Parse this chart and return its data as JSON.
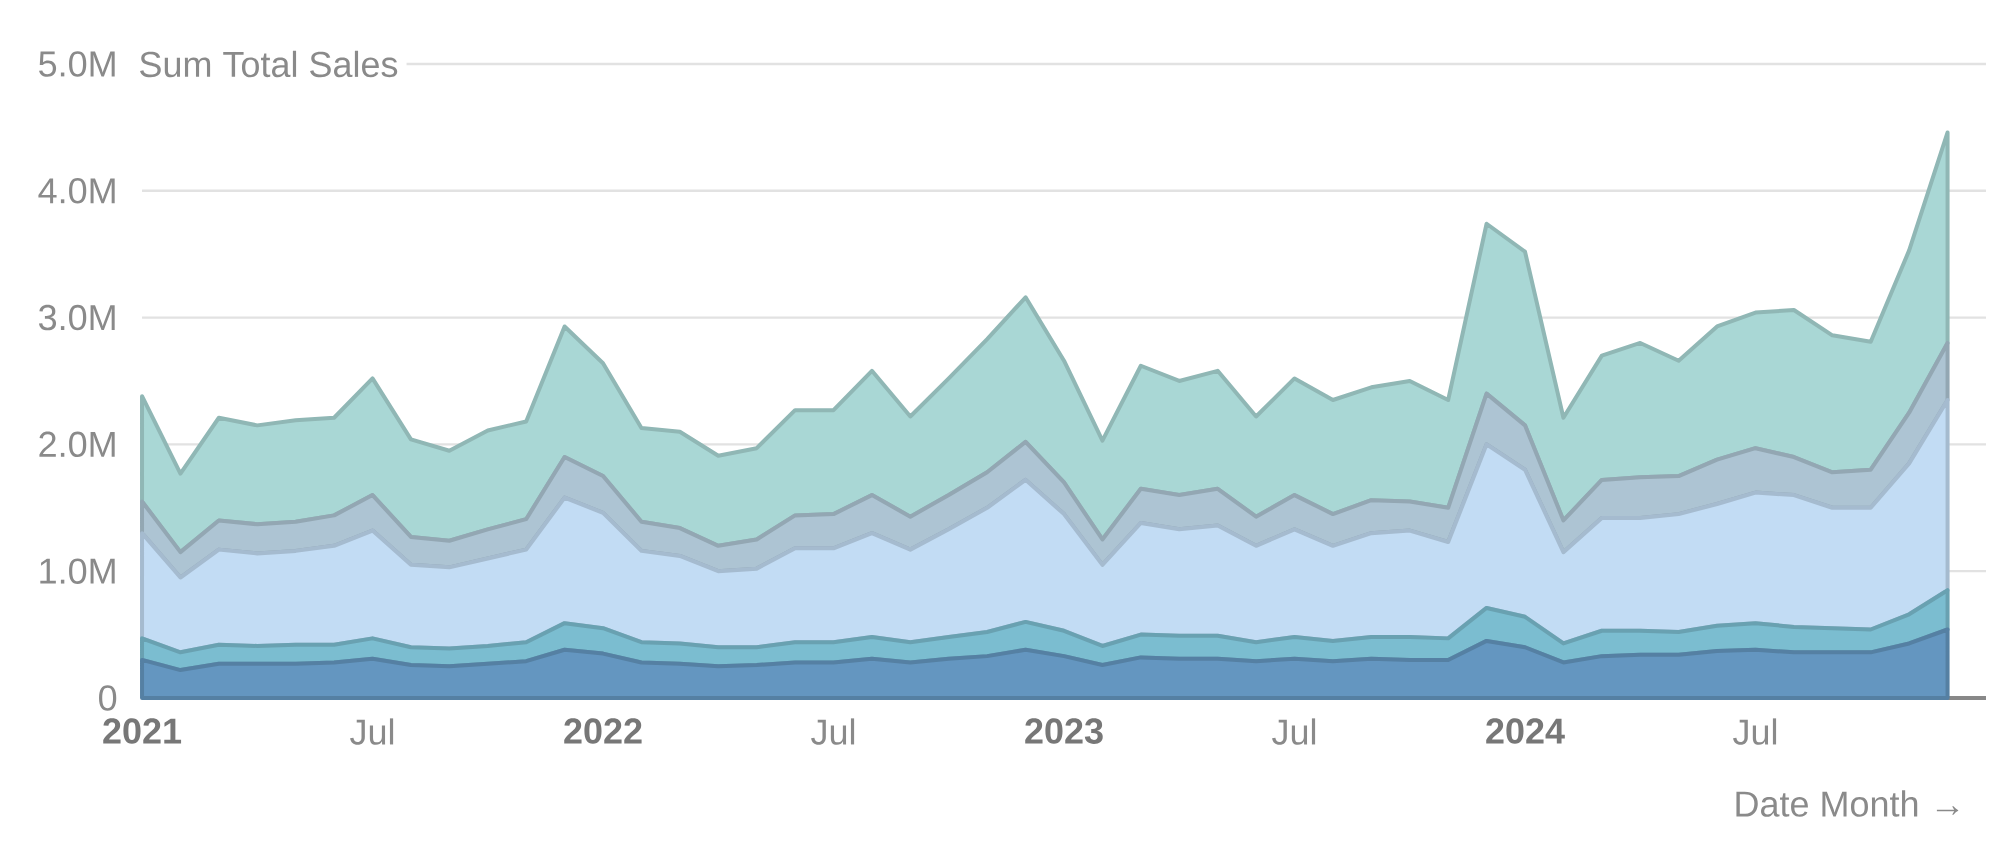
{
  "chart_data": {
    "type": "area",
    "stacked": true,
    "ylabel": "Sum Total Sales",
    "xlabel": "Date Month →",
    "grid": "y",
    "x": [
      "2021-01",
      "2021-02",
      "2021-03",
      "2021-04",
      "2021-05",
      "2021-06",
      "2021-07",
      "2021-08",
      "2021-09",
      "2021-10",
      "2021-11",
      "2021-12",
      "2022-01",
      "2022-02",
      "2022-03",
      "2022-04",
      "2022-05",
      "2022-06",
      "2022-07",
      "2022-08",
      "2022-09",
      "2022-10",
      "2022-11",
      "2022-12",
      "2023-01",
      "2023-02",
      "2023-03",
      "2023-04",
      "2023-05",
      "2023-06",
      "2023-07",
      "2023-08",
      "2023-09",
      "2023-10",
      "2023-11",
      "2023-12",
      "2024-01",
      "2024-02",
      "2024-03",
      "2024-04",
      "2024-05",
      "2024-06",
      "2024-07",
      "2024-08",
      "2024-09",
      "2024-10",
      "2024-11",
      "2024-12"
    ],
    "xlim": [
      "2021-01",
      "2025-01"
    ],
    "xticks": [
      {
        "value": "2021-01",
        "label": "2021"
      },
      {
        "value": "2021-07",
        "label": "Jul"
      },
      {
        "value": "2022-01",
        "label": "2022"
      },
      {
        "value": "2022-07",
        "label": "Jul"
      },
      {
        "value": "2023-01",
        "label": "2023"
      },
      {
        "value": "2023-07",
        "label": "Jul"
      },
      {
        "value": "2024-01",
        "label": "2024"
      },
      {
        "value": "2024-07",
        "label": "Jul"
      }
    ],
    "ylim": [
      0,
      5
    ],
    "yticks": [
      {
        "value": 0,
        "label": "0"
      },
      {
        "value": 1,
        "label": "1.0M"
      },
      {
        "value": 2,
        "label": "2.0M"
      },
      {
        "value": 3,
        "label": "3.0M"
      },
      {
        "value": 4,
        "label": "4.0M"
      },
      {
        "value": 5,
        "label": "5.0M"
      }
    ],
    "series": [
      {
        "color": "#6496c0",
        "values": [
          0.3,
          0.22,
          0.27,
          0.27,
          0.27,
          0.28,
          0.31,
          0.26,
          0.25,
          0.27,
          0.29,
          0.38,
          0.35,
          0.28,
          0.27,
          0.25,
          0.26,
          0.28,
          0.28,
          0.31,
          0.28,
          0.31,
          0.33,
          0.38,
          0.33,
          0.26,
          0.32,
          0.31,
          0.31,
          0.29,
          0.31,
          0.29,
          0.31,
          0.3,
          0.3,
          0.45,
          0.4,
          0.28,
          0.33,
          0.34,
          0.34,
          0.37,
          0.38,
          0.36,
          0.36,
          0.36,
          0.43,
          0.54
        ]
      },
      {
        "color": "#7bbdd0",
        "values": [
          0.17,
          0.14,
          0.15,
          0.14,
          0.15,
          0.14,
          0.16,
          0.14,
          0.14,
          0.14,
          0.15,
          0.21,
          0.2,
          0.16,
          0.16,
          0.15,
          0.14,
          0.16,
          0.16,
          0.17,
          0.16,
          0.17,
          0.19,
          0.22,
          0.2,
          0.15,
          0.18,
          0.18,
          0.18,
          0.15,
          0.17,
          0.16,
          0.17,
          0.18,
          0.17,
          0.26,
          0.24,
          0.15,
          0.2,
          0.19,
          0.18,
          0.2,
          0.21,
          0.2,
          0.19,
          0.18,
          0.23,
          0.31
        ]
      },
      {
        "color": "#c2dcf4",
        "values": [
          0.83,
          0.59,
          0.75,
          0.73,
          0.74,
          0.78,
          0.85,
          0.65,
          0.64,
          0.69,
          0.73,
          0.99,
          0.91,
          0.72,
          0.69,
          0.6,
          0.62,
          0.74,
          0.74,
          0.82,
          0.73,
          0.85,
          0.98,
          1.12,
          0.92,
          0.64,
          0.88,
          0.84,
          0.87,
          0.76,
          0.85,
          0.75,
          0.82,
          0.84,
          0.76,
          1.29,
          1.16,
          0.72,
          0.89,
          0.89,
          0.93,
          0.96,
          1.03,
          1.04,
          0.95,
          0.96,
          1.19,
          1.5
        ]
      },
      {
        "color": "#adc4d3",
        "values": [
          0.25,
          0.2,
          0.23,
          0.23,
          0.23,
          0.24,
          0.28,
          0.22,
          0.21,
          0.23,
          0.24,
          0.32,
          0.29,
          0.23,
          0.22,
          0.2,
          0.23,
          0.26,
          0.27,
          0.3,
          0.26,
          0.27,
          0.28,
          0.3,
          0.25,
          0.2,
          0.27,
          0.27,
          0.29,
          0.23,
          0.27,
          0.25,
          0.26,
          0.23,
          0.27,
          0.4,
          0.35,
          0.25,
          0.3,
          0.32,
          0.3,
          0.35,
          0.35,
          0.3,
          0.28,
          0.3,
          0.4,
          0.45
        ]
      },
      {
        "color": "#a9d7d5",
        "values": [
          0.83,
          0.62,
          0.81,
          0.78,
          0.8,
          0.77,
          0.92,
          0.77,
          0.71,
          0.78,
          0.77,
          1.03,
          0.89,
          0.74,
          0.76,
          0.71,
          0.72,
          0.83,
          0.82,
          0.98,
          0.79,
          0.92,
          1.05,
          1.14,
          0.96,
          0.78,
          0.97,
          0.9,
          0.93,
          0.79,
          0.92,
          0.9,
          0.89,
          0.95,
          0.85,
          1.34,
          1.37,
          0.81,
          0.98,
          1.06,
          0.91,
          1.05,
          1.07,
          1.16,
          1.08,
          1.01,
          1.28,
          1.66
        ]
      }
    ]
  }
}
